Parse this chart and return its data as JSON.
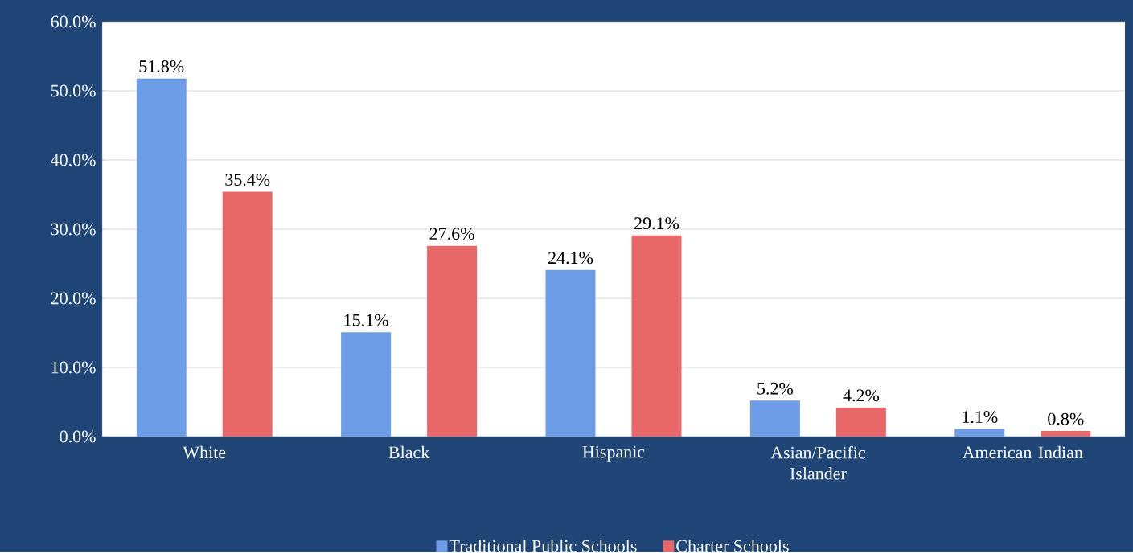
{
  "chart_data": {
    "type": "bar",
    "categories": [
      "White",
      "Black",
      "Hispanic",
      "Asian/Pacific Islander",
      "American Indian"
    ],
    "series": [
      {
        "name": "Traditional Public Schools",
        "color": "#6d9de6",
        "values": [
          51.8,
          15.1,
          24.1,
          5.2,
          1.1
        ],
        "value_labels": [
          "51.8%",
          "15.1%",
          "24.1%",
          "5.2%",
          "1.1%"
        ]
      },
      {
        "name": "Charter Schools",
        "color": "#e86868",
        "values": [
          35.4,
          27.6,
          29.1,
          4.2,
          0.8
        ],
        "value_labels": [
          "35.4%",
          "27.6%",
          "29.1%",
          "4.2%",
          "0.8%"
        ]
      }
    ],
    "ylim": [
      0,
      60
    ],
    "yticks": [
      {
        "value": 0,
        "label": "0.0%"
      },
      {
        "value": 10,
        "label": "10.0%"
      },
      {
        "value": 20,
        "label": "20.0%"
      },
      {
        "value": 30,
        "label": "30.0%"
      },
      {
        "value": 40,
        "label": "40.0%"
      },
      {
        "value": 50,
        "label": "50.0%"
      },
      {
        "value": 60,
        "label": "60.0%"
      }
    ],
    "grid": "y",
    "legend": "bottom"
  }
}
